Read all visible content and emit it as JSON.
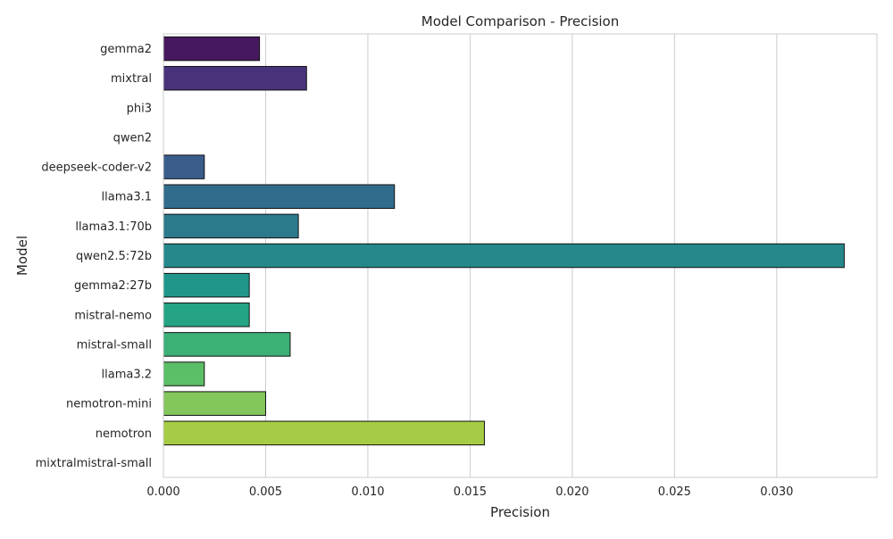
{
  "chart_data": {
    "type": "bar",
    "orientation": "horizontal",
    "title": "Model Comparison - Precision",
    "xlabel": "Precision",
    "ylabel": "Model",
    "xlim": [
      0,
      0.0349
    ],
    "x_ticks": [
      "0.000",
      "0.005",
      "0.010",
      "0.015",
      "0.020",
      "0.025",
      "0.030"
    ],
    "grid": "vertical",
    "categories": [
      "gemma2",
      "mixtral",
      "phi3",
      "qwen2",
      "deepseek-coder-v2",
      "llama3.1",
      "llama3.1:70b",
      "qwen2.5:72b",
      "gemma2:27b",
      "mistral-nemo",
      "mistral-small",
      "llama3.2",
      "nemotron-mini",
      "nemotron",
      "mixtralmistral-small"
    ],
    "values": [
      0.0047,
      0.007,
      0.0,
      0.0,
      0.002,
      0.0113,
      0.0066,
      0.0333,
      0.0042,
      0.0042,
      0.0062,
      0.002,
      0.005,
      0.0157,
      0.0
    ],
    "colors": [
      "#46185e",
      "#48327a",
      "#453f83",
      "#3f4b8b",
      "#3a5d8c",
      "#316c8c",
      "#2b7a8c",
      "#26888a",
      "#20968a",
      "#24a485",
      "#3cb077",
      "#5cbe66",
      "#82c65c",
      "#a6cc45",
      "#d0d839"
    ],
    "bar_edge_color": "#111111",
    "grid_color": "#cccccc",
    "frame_color": "#cccccc"
  }
}
